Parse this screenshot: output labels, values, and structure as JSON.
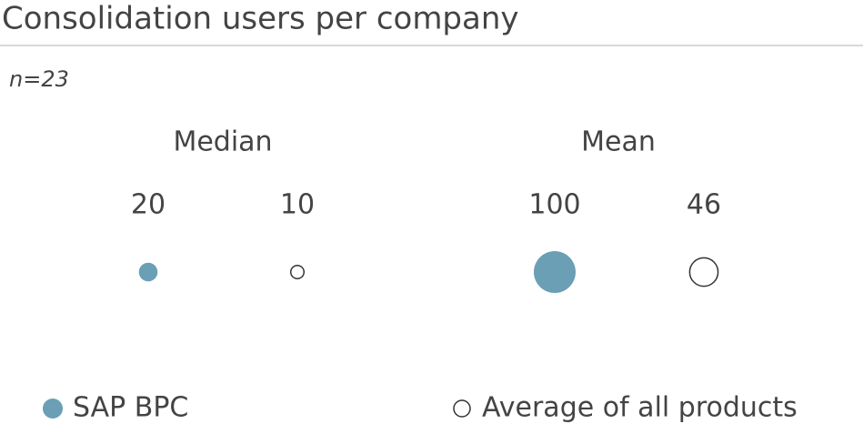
{
  "chart_data": {
    "type": "bubble",
    "title": "Consolidation users per company",
    "subtitle": "n=23",
    "categories": [
      "Median",
      "Mean"
    ],
    "series": [
      {
        "name": "SAP BPC",
        "color": "#6a9fb5",
        "filled": true,
        "values": [
          20,
          100
        ]
      },
      {
        "name": "Average of all products",
        "color": "#333333",
        "filled": false,
        "values": [
          10,
          46
        ]
      }
    ]
  }
}
